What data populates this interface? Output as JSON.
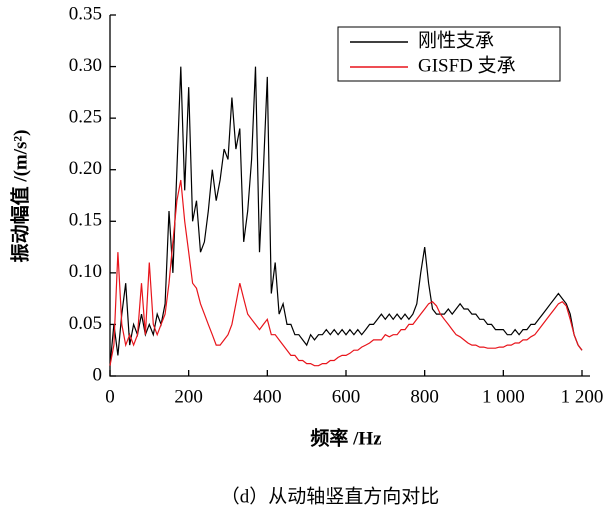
{
  "chart_data": {
    "type": "line",
    "xlabel": "频率 /Hz",
    "ylabel": "振动幅值 /(m/s²)",
    "caption": "（d）从动轴竖直方向对比",
    "legend": "upper right",
    "xlim": [
      0,
      1200
    ],
    "ylim": [
      0,
      0.35
    ],
    "xticks": [
      0,
      200,
      400,
      600,
      800,
      {
        "value": 1000,
        "label": "1 000"
      },
      {
        "value": 1200,
        "label": "1 200"
      }
    ],
    "yticks": [
      0,
      0.05,
      {
        "value": 0.1,
        "label": "0.10"
      },
      0.15,
      {
        "value": 0.2,
        "label": "0.20"
      },
      0.25,
      {
        "value": 0.3,
        "label": "0.30"
      },
      0.35
    ],
    "x": [
      0,
      10,
      20,
      30,
      40,
      50,
      60,
      70,
      80,
      90,
      100,
      110,
      120,
      130,
      140,
      150,
      160,
      170,
      180,
      190,
      200,
      210,
      220,
      230,
      240,
      250,
      260,
      270,
      280,
      290,
      300,
      310,
      320,
      330,
      340,
      350,
      360,
      370,
      380,
      390,
      400,
      410,
      420,
      430,
      440,
      450,
      460,
      470,
      480,
      490,
      500,
      510,
      520,
      530,
      540,
      550,
      560,
      570,
      580,
      590,
      600,
      610,
      620,
      630,
      640,
      650,
      660,
      670,
      680,
      690,
      700,
      710,
      720,
      730,
      740,
      750,
      760,
      770,
      780,
      790,
      800,
      810,
      820,
      830,
      840,
      850,
      860,
      870,
      880,
      890,
      900,
      910,
      920,
      930,
      940,
      950,
      960,
      970,
      980,
      990,
      1000,
      1010,
      1020,
      1030,
      1040,
      1050,
      1060,
      1070,
      1080,
      1090,
      1100,
      1110,
      1120,
      1130,
      1140,
      1150,
      1160,
      1170,
      1180,
      1190,
      1200
    ],
    "series": [
      {
        "name": "刚性支承",
        "color": "#000000",
        "values": [
          0.01,
          0.05,
          0.02,
          0.06,
          0.09,
          0.03,
          0.05,
          0.04,
          0.06,
          0.04,
          0.05,
          0.04,
          0.06,
          0.05,
          0.07,
          0.16,
          0.1,
          0.2,
          0.3,
          0.18,
          0.28,
          0.15,
          0.17,
          0.12,
          0.13,
          0.16,
          0.2,
          0.17,
          0.19,
          0.22,
          0.21,
          0.27,
          0.22,
          0.24,
          0.13,
          0.16,
          0.21,
          0.3,
          0.12,
          0.2,
          0.29,
          0.08,
          0.11,
          0.06,
          0.07,
          0.05,
          0.05,
          0.04,
          0.04,
          0.035,
          0.03,
          0.04,
          0.035,
          0.04,
          0.04,
          0.045,
          0.04,
          0.045,
          0.04,
          0.045,
          0.04,
          0.045,
          0.04,
          0.045,
          0.04,
          0.045,
          0.05,
          0.05,
          0.055,
          0.06,
          0.055,
          0.06,
          0.055,
          0.06,
          0.055,
          0.06,
          0.055,
          0.06,
          0.07,
          0.1,
          0.125,
          0.09,
          0.065,
          0.06,
          0.06,
          0.06,
          0.065,
          0.06,
          0.065,
          0.07,
          0.065,
          0.065,
          0.06,
          0.06,
          0.055,
          0.055,
          0.05,
          0.05,
          0.045,
          0.045,
          0.045,
          0.04,
          0.04,
          0.045,
          0.04,
          0.045,
          0.045,
          0.05,
          0.05,
          0.055,
          0.06,
          0.065,
          0.07,
          0.075,
          0.08,
          0.075,
          0.07,
          0.06,
          0.04,
          0.03,
          0.025
        ]
      },
      {
        "name": "GISFD 支承",
        "color": "#e8141b",
        "values": [
          0.01,
          0.03,
          0.12,
          0.05,
          0.03,
          0.04,
          0.03,
          0.04,
          0.09,
          0.04,
          0.11,
          0.05,
          0.04,
          0.05,
          0.06,
          0.09,
          0.13,
          0.17,
          0.19,
          0.15,
          0.12,
          0.09,
          0.085,
          0.07,
          0.06,
          0.05,
          0.04,
          0.03,
          0.03,
          0.035,
          0.04,
          0.05,
          0.07,
          0.09,
          0.075,
          0.06,
          0.055,
          0.05,
          0.045,
          0.05,
          0.055,
          0.04,
          0.04,
          0.035,
          0.03,
          0.025,
          0.02,
          0.02,
          0.015,
          0.015,
          0.012,
          0.012,
          0.01,
          0.01,
          0.012,
          0.012,
          0.015,
          0.015,
          0.018,
          0.02,
          0.02,
          0.022,
          0.025,
          0.025,
          0.028,
          0.03,
          0.032,
          0.035,
          0.035,
          0.035,
          0.04,
          0.038,
          0.04,
          0.04,
          0.045,
          0.045,
          0.05,
          0.05,
          0.055,
          0.06,
          0.065,
          0.07,
          0.072,
          0.068,
          0.06,
          0.055,
          0.05,
          0.045,
          0.04,
          0.038,
          0.035,
          0.032,
          0.03,
          0.03,
          0.028,
          0.028,
          0.027,
          0.027,
          0.027,
          0.028,
          0.028,
          0.03,
          0.03,
          0.032,
          0.032,
          0.035,
          0.035,
          0.038,
          0.04,
          0.045,
          0.05,
          0.055,
          0.06,
          0.065,
          0.07,
          0.072,
          0.068,
          0.055,
          0.04,
          0.03,
          0.025
        ]
      }
    ]
  }
}
